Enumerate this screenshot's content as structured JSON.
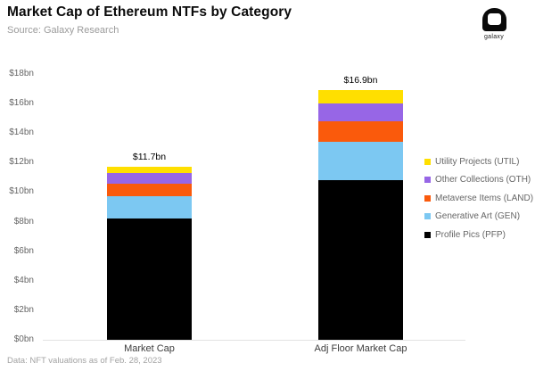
{
  "header": {
    "title": "Market Cap of Ethereum NTFs by Category",
    "source": "Source: Galaxy Research"
  },
  "logo": {
    "text": "galaxy"
  },
  "footer": {
    "note": "Data: NFT valuations as of Feb. 28, 2023"
  },
  "chart_data": {
    "type": "bar",
    "stacked": true,
    "title": "Market Cap of Ethereum NTFs by Category",
    "subtitle": "Source: Galaxy Research",
    "footnote": "Data: NFT valuations as of Feb. 28, 2023",
    "categories": [
      "Market Cap",
      "Adj Floor Market Cap"
    ],
    "total_labels": [
      "$11.7bn",
      "$16.9bn"
    ],
    "series": [
      {
        "name": "Profile Pics (PFP)",
        "color": "#000000",
        "values": [
          8.2,
          10.8
        ]
      },
      {
        "name": "Generative Art (GEN)",
        "color": "#7cc8f2",
        "values": [
          1.5,
          2.6
        ]
      },
      {
        "name": "Metaverse Items (LAND)",
        "color": "#fa5a0c",
        "values": [
          0.9,
          1.4
        ]
      },
      {
        "name": "Other Collections (OTH)",
        "color": "#9766e6",
        "values": [
          0.7,
          1.2
        ]
      },
      {
        "name": "Utility Projects (UTIL)",
        "color": "#ffdf00",
        "values": [
          0.4,
          0.9
        ]
      }
    ],
    "legend_order_top_to_bottom": [
      "Utility Projects (UTIL)",
      "Other Collections (OTH)",
      "Metaverse Items (LAND)",
      "Generative Art (GEN)",
      "Profile Pics (PFP)"
    ],
    "y_ticks": [
      "$0bn",
      "$2bn",
      "$4bn",
      "$6bn",
      "$8bn",
      "$10bn",
      "$12bn",
      "$14bn",
      "$16bn",
      "$18bn"
    ],
    "ylim": [
      0,
      18
    ],
    "xlabel": "",
    "ylabel": "",
    "grid": false,
    "legend_position": "right"
  }
}
